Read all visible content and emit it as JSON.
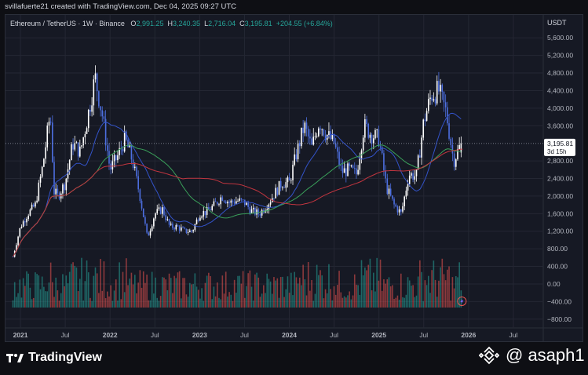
{
  "header": {
    "caption": "svillafuerte21 created with TradingView.com, Dec 04, 2025 09:27 UTC"
  },
  "legend": {
    "symbol": "Ethereum / TetherUS · 1W · Binance",
    "open_label": "O",
    "open": "2,991.25",
    "high_label": "H",
    "high": "3,240.35",
    "low_label": "L",
    "low": "2,716.04",
    "close_label": "C",
    "close": "3,195.81",
    "change": "+204.55 (+6.84%)"
  },
  "currency": "USDT",
  "price_tag": {
    "price": "3,195.81",
    "countdown": "3d 15h"
  },
  "footer": {
    "brand": "TradingView",
    "handle": "@ asaph1"
  },
  "colors": {
    "up": "#ffffff",
    "down": "#4d6fe0",
    "ma_blue": "#3353c9",
    "ma_green": "#3aa05a",
    "ma_red": "#c0353f",
    "vol_up": "#26a69a",
    "vol_down": "#ef5350"
  },
  "chart_data": {
    "type": "candlestick",
    "interval": "1W",
    "y_ticks": [
      "5,600.00",
      "5,200.00",
      "4,800.00",
      "4,400.00",
      "4,000.00",
      "3,600.00",
      "2,800.00",
      "2,400.00",
      "2,000.00",
      "1,600.00",
      "1,200.00",
      "800.00",
      "400.00",
      "0.00",
      "−400.00",
      "−800.00"
    ],
    "x_ticks": [
      "2021",
      "Jul",
      "2022",
      "Jul",
      "2023",
      "Jul",
      "2024",
      "Jul",
      "2025",
      "Jul",
      "2026",
      "Jul"
    ],
    "ylim": [
      -1000,
      6000
    ],
    "grid": true,
    "price_path": [
      [
        "2020-12",
        620
      ],
      [
        "2021-01",
        1300
      ],
      [
        "2021-02",
        1600
      ],
      [
        "2021-03",
        1800
      ],
      [
        "2021-04",
        2700
      ],
      [
        "2021-05",
        3900
      ],
      [
        "2021-05b",
        2100
      ],
      [
        "2021-06",
        2000
      ],
      [
        "2021-07",
        2300
      ],
      [
        "2021-08",
        3200
      ],
      [
        "2021-09",
        3000
      ],
      [
        "2021-10",
        3800
      ],
      [
        "2021-11",
        4700
      ],
      [
        "2021-12",
        3800
      ],
      [
        "2022-01",
        2600
      ],
      [
        "2022-02",
        2900
      ],
      [
        "2022-03",
        3300
      ],
      [
        "2022-04",
        2800
      ],
      [
        "2022-05",
        2000
      ],
      [
        "2022-06",
        1050
      ],
      [
        "2022-07",
        1600
      ],
      [
        "2022-08",
        1700
      ],
      [
        "2022-09",
        1300
      ],
      [
        "2022-10",
        1300
      ],
      [
        "2022-11",
        1200
      ],
      [
        "2022-12",
        1200
      ],
      [
        "2023-01",
        1600
      ],
      [
        "2023-02",
        1650
      ],
      [
        "2023-03",
        1800
      ],
      [
        "2023-04",
        2000
      ],
      [
        "2023-05",
        1850
      ],
      [
        "2023-06",
        1900
      ],
      [
        "2023-07",
        1850
      ],
      [
        "2023-08",
        1650
      ],
      [
        "2023-09",
        1600
      ],
      [
        "2023-10",
        1800
      ],
      [
        "2023-11",
        2050
      ],
      [
        "2023-12",
        2300
      ],
      [
        "2024-01",
        2300
      ],
      [
        "2024-02",
        3000
      ],
      [
        "2024-03",
        3600
      ],
      [
        "2024-04",
        3100
      ],
      [
        "2024-05",
        3700
      ],
      [
        "2024-06",
        3400
      ],
      [
        "2024-07",
        3200
      ],
      [
        "2024-08",
        2550
      ],
      [
        "2024-09",
        2600
      ],
      [
        "2024-10",
        2500
      ],
      [
        "2024-11",
        3600
      ],
      [
        "2024-12",
        3400
      ],
      [
        "2025-01",
        3300
      ],
      [
        "2025-02",
        2200
      ],
      [
        "2025-03",
        1800
      ],
      [
        "2025-04",
        1600
      ],
      [
        "2025-05",
        2500
      ],
      [
        "2025-06",
        2450
      ],
      [
        "2025-07",
        3700
      ],
      [
        "2025-08",
        4300
      ],
      [
        "2025-09",
        4400
      ],
      [
        "2025-10",
        3900
      ],
      [
        "2025-11",
        2800
      ],
      [
        "2025-12",
        3195.81
      ]
    ],
    "series": [
      {
        "name": "",
        "type": "ma",
        "color": "#3353c9"
      },
      {
        "name": "",
        "type": "ma",
        "color": "#3aa05a"
      },
      {
        "name": "",
        "type": "ma",
        "color": "#c0353f"
      }
    ],
    "volume": true
  }
}
